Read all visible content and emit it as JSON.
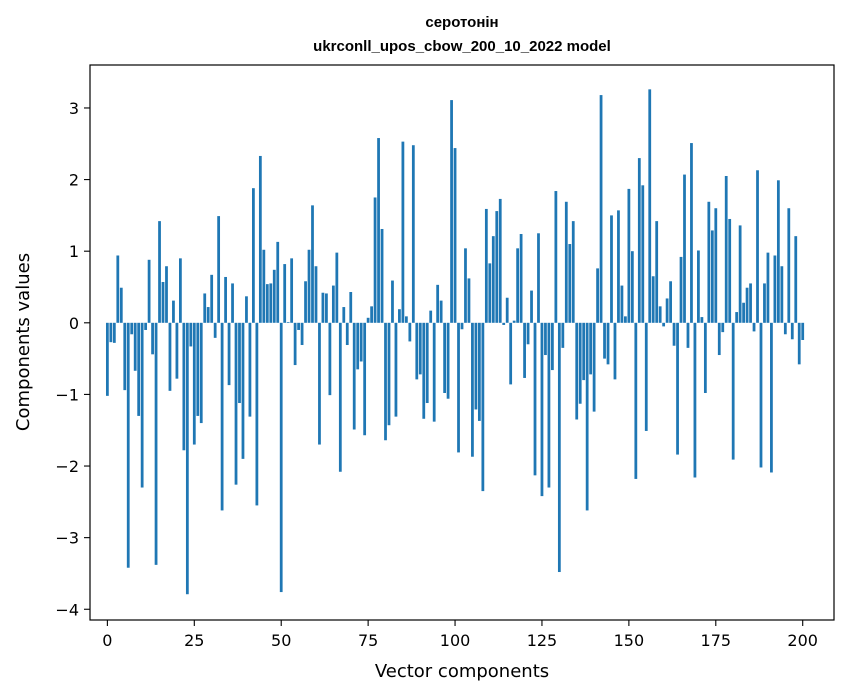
{
  "chart_data": {
    "type": "bar",
    "title_line1": "серотонін",
    "title_line2": "ukrconll_upos_cbow_200_10_2022 model",
    "xlabel": "Vector components",
    "ylabel": "Components values",
    "xlim": [
      -5,
      209
    ],
    "ylim": [
      -4.15,
      3.6
    ],
    "xticks": [
      0,
      25,
      50,
      75,
      100,
      125,
      150,
      175,
      200
    ],
    "xtick_labels": [
      "0",
      "25",
      "50",
      "75",
      "100",
      "125",
      "150",
      "175",
      "200"
    ],
    "yticks": [
      3,
      2,
      1,
      0,
      -1,
      -2,
      -3,
      -4
    ],
    "ytick_labels": [
      "3",
      "2",
      "1",
      "0",
      "−1",
      "−2",
      "−3",
      "−4"
    ],
    "bar_color": "#1f77b4",
    "values": [
      -1.02,
      -0.27,
      -0.28,
      0.94,
      0.49,
      -0.94,
      -3.42,
      -0.16,
      -0.67,
      -1.3,
      -2.3,
      -0.1,
      0.88,
      -0.44,
      -3.38,
      1.42,
      0.57,
      0.79,
      -0.95,
      0.31,
      -0.78,
      0.9,
      -1.78,
      -3.79,
      -0.33,
      -1.7,
      -1.3,
      -1.4,
      0.41,
      0.22,
      0.67,
      -0.21,
      1.49,
      -2.62,
      0.64,
      -0.87,
      0.55,
      -2.26,
      -1.12,
      -1.9,
      0.37,
      -1.31,
      1.88,
      -2.55,
      2.33,
      1.02,
      0.54,
      0.55,
      0.74,
      1.13,
      -3.76,
      0.82,
      0.01,
      0.9,
      -0.59,
      -0.1,
      -0.31,
      0.58,
      1.02,
      1.64,
      0.79,
      -1.7,
      0.42,
      0.41,
      -1.01,
      0.52,
      0.98,
      -2.08,
      0.22,
      -0.31,
      0.43,
      -1.49,
      -0.65,
      -0.54,
      -1.57,
      0.07,
      0.23,
      1.75,
      2.58,
      1.31,
      -1.64,
      -1.43,
      0.59,
      -1.31,
      0.19,
      2.53,
      0.09,
      -0.26,
      2.48,
      -0.79,
      -0.72,
      -1.34,
      -1.12,
      0.17,
      -1.38,
      0.53,
      0.31,
      -0.98,
      -1.06,
      3.11,
      2.44,
      -1.81,
      -0.09,
      1.04,
      0.62,
      -1.87,
      -1.21,
      -1.37,
      -2.35,
      1.59,
      0.83,
      1.21,
      1.56,
      1.73,
      -0.03,
      0.35,
      -0.86,
      0.03,
      1.04,
      1.24,
      -0.77,
      -0.3,
      0.45,
      -2.13,
      1.25,
      -2.42,
      -0.45,
      -2.3,
      -0.66,
      1.84,
      -3.48,
      -0.35,
      1.69,
      1.1,
      1.42,
      -1.35,
      -1.13,
      -0.8,
      -2.62,
      -0.72,
      -1.24,
      0.76,
      3.18,
      -0.5,
      -0.58,
      1.5,
      -0.79,
      1.57,
      0.52,
      0.09,
      1.87,
      1.0,
      -2.18,
      2.3,
      1.92,
      -1.51,
      3.26,
      0.65,
      1.42,
      0.23,
      -0.05,
      0.34,
      0.58,
      -0.32,
      -1.84,
      0.92,
      2.07,
      -0.35,
      2.51,
      -2.16,
      1.01,
      0.08,
      -0.98,
      1.69,
      1.29,
      1.6,
      -0.45,
      -0.13,
      2.05,
      1.45,
      -1.91,
      0.15,
      1.36,
      0.28,
      0.49,
      0.55,
      -0.12,
      2.13,
      -2.02,
      0.55,
      0.98,
      -2.09,
      0.94,
      1.99,
      0.79,
      -0.16,
      1.6,
      -0.23,
      1.21,
      -0.58,
      -0.24
    ]
  }
}
